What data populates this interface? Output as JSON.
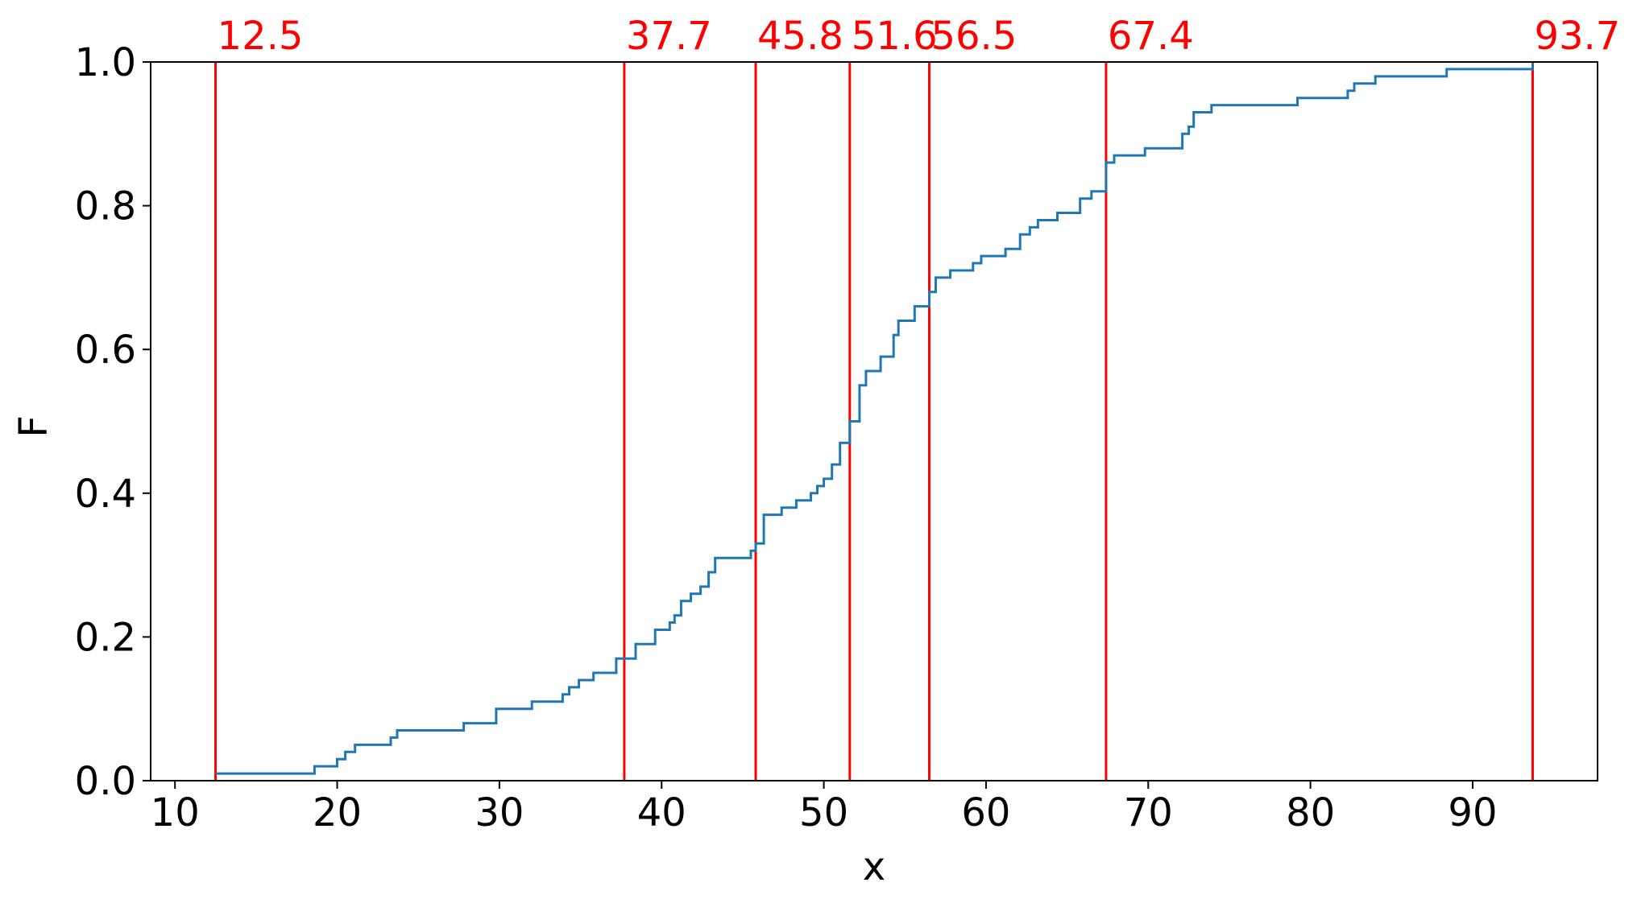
{
  "chart_data": {
    "type": "line",
    "title": "",
    "xlabel": "x",
    "ylabel": "F",
    "xlim": [
      8.5,
      97.7
    ],
    "ylim": [
      0.0,
      1.0
    ],
    "xticks": [
      10,
      20,
      30,
      40,
      50,
      60,
      70,
      80,
      90
    ],
    "xtick_labels": [
      "10",
      "20",
      "30",
      "40",
      "50",
      "60",
      "70",
      "80",
      "90"
    ],
    "yticks": [
      0.0,
      0.2,
      0.4,
      0.6,
      0.8,
      1.0
    ],
    "ytick_labels": [
      "0.0",
      "0.2",
      "0.4",
      "0.6",
      "0.8",
      "1.0"
    ],
    "grid": false,
    "series": [
      {
        "color": "#1f77b4",
        "drawstyle": "steps-post",
        "x": [
          12.5,
          18.6,
          20.0,
          20.5,
          21.1,
          23.3,
          23.7,
          27.8,
          29.8,
          32.0,
          33.9,
          34.3,
          34.9,
          35.8,
          37.2,
          38.4,
          39.6,
          40.5,
          40.8,
          41.2,
          41.8,
          42.4,
          42.9,
          43.3,
          45.5,
          45.8,
          46.3,
          47.4,
          48.3,
          49.2,
          49.6,
          50.0,
          50.5,
          51.0,
          51.6,
          52.2,
          52.6,
          53.5,
          54.3,
          54.6,
          55.6,
          56.5,
          56.9,
          57.8,
          59.2,
          59.7,
          61.2,
          62.1,
          62.7,
          63.2,
          64.4,
          65.8,
          66.5,
          67.4,
          67.9,
          69.8,
          72.1,
          72.5,
          72.8,
          73.9,
          79.2,
          82.3,
          82.7,
          84.0,
          88.4,
          93.7
        ],
        "y": [
          0.01,
          0.02,
          0.03,
          0.04,
          0.05,
          0.06,
          0.07,
          0.08,
          0.1,
          0.11,
          0.12,
          0.13,
          0.14,
          0.15,
          0.17,
          0.19,
          0.21,
          0.22,
          0.23,
          0.25,
          0.26,
          0.27,
          0.29,
          0.31,
          0.32,
          0.33,
          0.37,
          0.38,
          0.39,
          0.4,
          0.41,
          0.42,
          0.44,
          0.47,
          0.5,
          0.55,
          0.57,
          0.59,
          0.62,
          0.64,
          0.66,
          0.68,
          0.7,
          0.71,
          0.72,
          0.73,
          0.74,
          0.76,
          0.77,
          0.78,
          0.79,
          0.81,
          0.82,
          0.86,
          0.87,
          0.88,
          0.9,
          0.91,
          0.93,
          0.94,
          0.95,
          0.96,
          0.97,
          0.98,
          0.99,
          1.0
        ]
      }
    ],
    "vlines": {
      "color": "#ff0000",
      "x": [
        12.5,
        37.7,
        45.8,
        51.6,
        56.5,
        67.4,
        93.7
      ],
      "labels": [
        "12.5",
        "37.7",
        "45.8",
        "51.6",
        "56.5",
        "67.4",
        "93.7"
      ]
    }
  }
}
